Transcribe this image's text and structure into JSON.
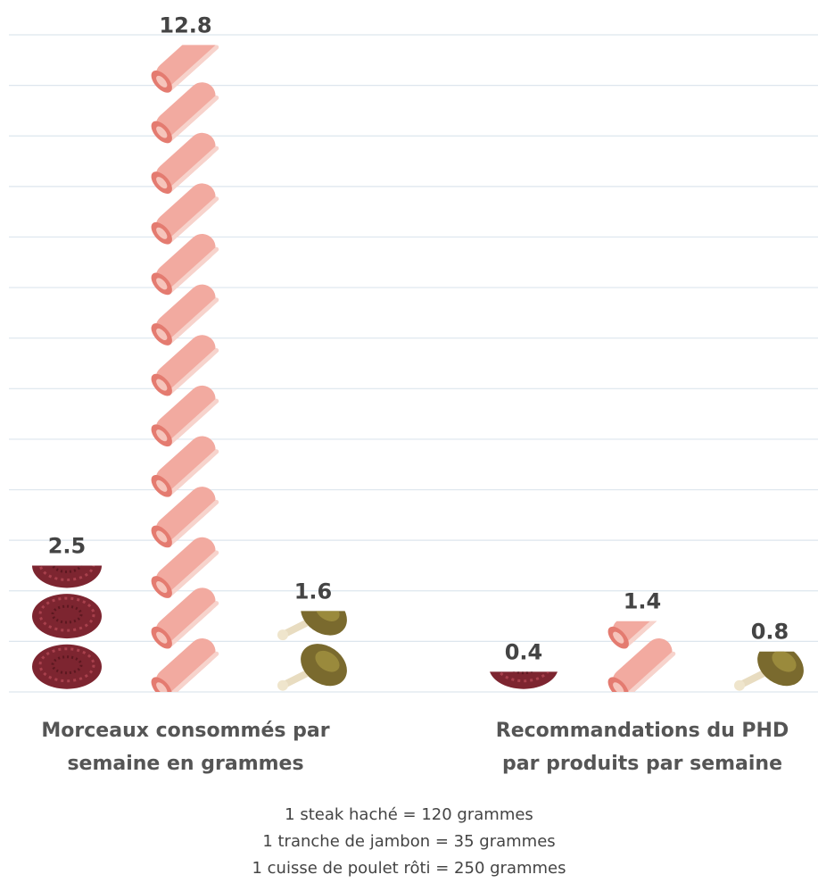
{
  "chart_data": {
    "type": "pictograph",
    "categories": [
      "Morceaux consommés par semaine en grammes",
      "Recommandations du PHD par produits par semaine"
    ],
    "series": [
      {
        "color": "#7d2530",
        "values": [
          2.5,
          0.4
        ]
      },
      {
        "color": "#f2aaa0",
        "values": [
          12.8,
          1.4
        ]
      },
      {
        "color": "#7a6a2e",
        "values": [
          1.6,
          0.8
        ]
      }
    ],
    "ylim": [
      0,
      13
    ],
    "yticks": [
      0,
      1,
      2,
      3,
      4,
      5,
      6,
      7,
      8,
      9,
      10,
      11,
      12,
      13
    ],
    "grid": true,
    "notes": [
      "1 steak haché = 120 grammes",
      "1 tranche de jambon = 35 grammes",
      "1 cuisse de poulet rôti = 250 grammes"
    ]
  }
}
